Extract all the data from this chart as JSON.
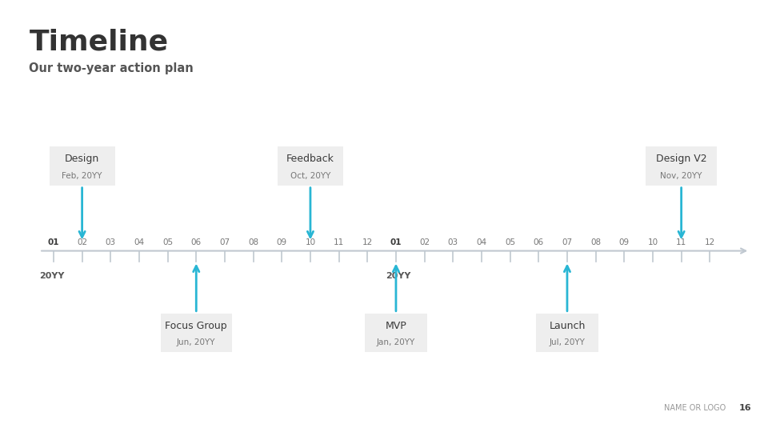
{
  "title": "Timeline",
  "subtitle": "Our two-year action plan",
  "background_color": "#ffffff",
  "footer_text": "NAME OR LOGO",
  "footer_page": "16",
  "arrow_color": "#29b6d4",
  "tick_color": "#c0c8d0",
  "axis_color": "#c0c8d0",
  "label_bold_color": "#3a3a3a",
  "label_normal_color": "#777777",
  "box_bg": "#eeeeee",
  "months_year1": [
    "01",
    "02",
    "03",
    "04",
    "05",
    "06",
    "07",
    "08",
    "09",
    "10",
    "11",
    "12"
  ],
  "months_year2": [
    "01",
    "02",
    "03",
    "04",
    "05",
    "06",
    "07",
    "08",
    "09",
    "10",
    "11",
    "12"
  ],
  "year1_label": "20YY",
  "year2_label": "20YY",
  "events_above": [
    {
      "label": "Design",
      "date": "Feb, 20YY",
      "month_idx": 1,
      "box_width": 2.3
    },
    {
      "label": "Feedback",
      "date": "Oct, 20YY",
      "month_idx": 9,
      "box_width": 2.3
    },
    {
      "label": "Design V2",
      "date": "Nov, 20YY",
      "month_idx": 22,
      "box_width": 2.5
    }
  ],
  "events_below": [
    {
      "label": "Focus Group",
      "date": "Jun, 20YY",
      "month_idx": 5,
      "box_width": 2.5
    },
    {
      "label": "MVP",
      "date": "Jan, 20YY",
      "month_idx": 12,
      "box_width": 2.2
    },
    {
      "label": "Launch",
      "date": "Jul, 20YY",
      "month_idx": 18,
      "box_width": 2.2
    }
  ]
}
